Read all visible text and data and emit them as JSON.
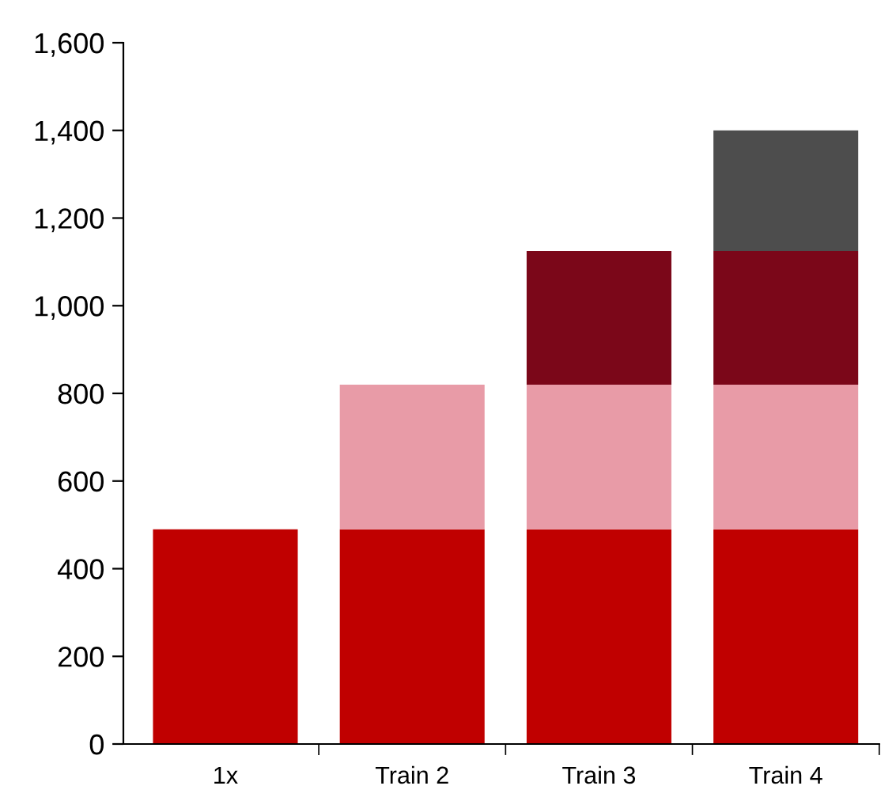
{
  "chart_data": {
    "type": "bar",
    "stacked": true,
    "categories": [
      "1x",
      "Train 2",
      "Train 3",
      "Train 4"
    ],
    "series": [
      {
        "color": "#c00000",
        "values": [
          490,
          490,
          490,
          490
        ]
      },
      {
        "color": "#e89ba7",
        "values": [
          null,
          330,
          330,
          330
        ]
      },
      {
        "color": "#7b0719",
        "values": [
          null,
          null,
          305,
          305
        ]
      },
      {
        "color": "#4d4d4d",
        "values": [
          null,
          null,
          null,
          275
        ]
      }
    ],
    "ylim": [
      0,
      1600
    ],
    "yticks": [
      0,
      200,
      400,
      600,
      800,
      {
        "value": 1000,
        "label": "1,000"
      },
      {
        "value": 1200,
        "label": "1,200"
      },
      {
        "value": 1400,
        "label": "1,400"
      },
      {
        "value": 1600,
        "label": "1,600"
      }
    ],
    "grid": false,
    "legend": false
  }
}
